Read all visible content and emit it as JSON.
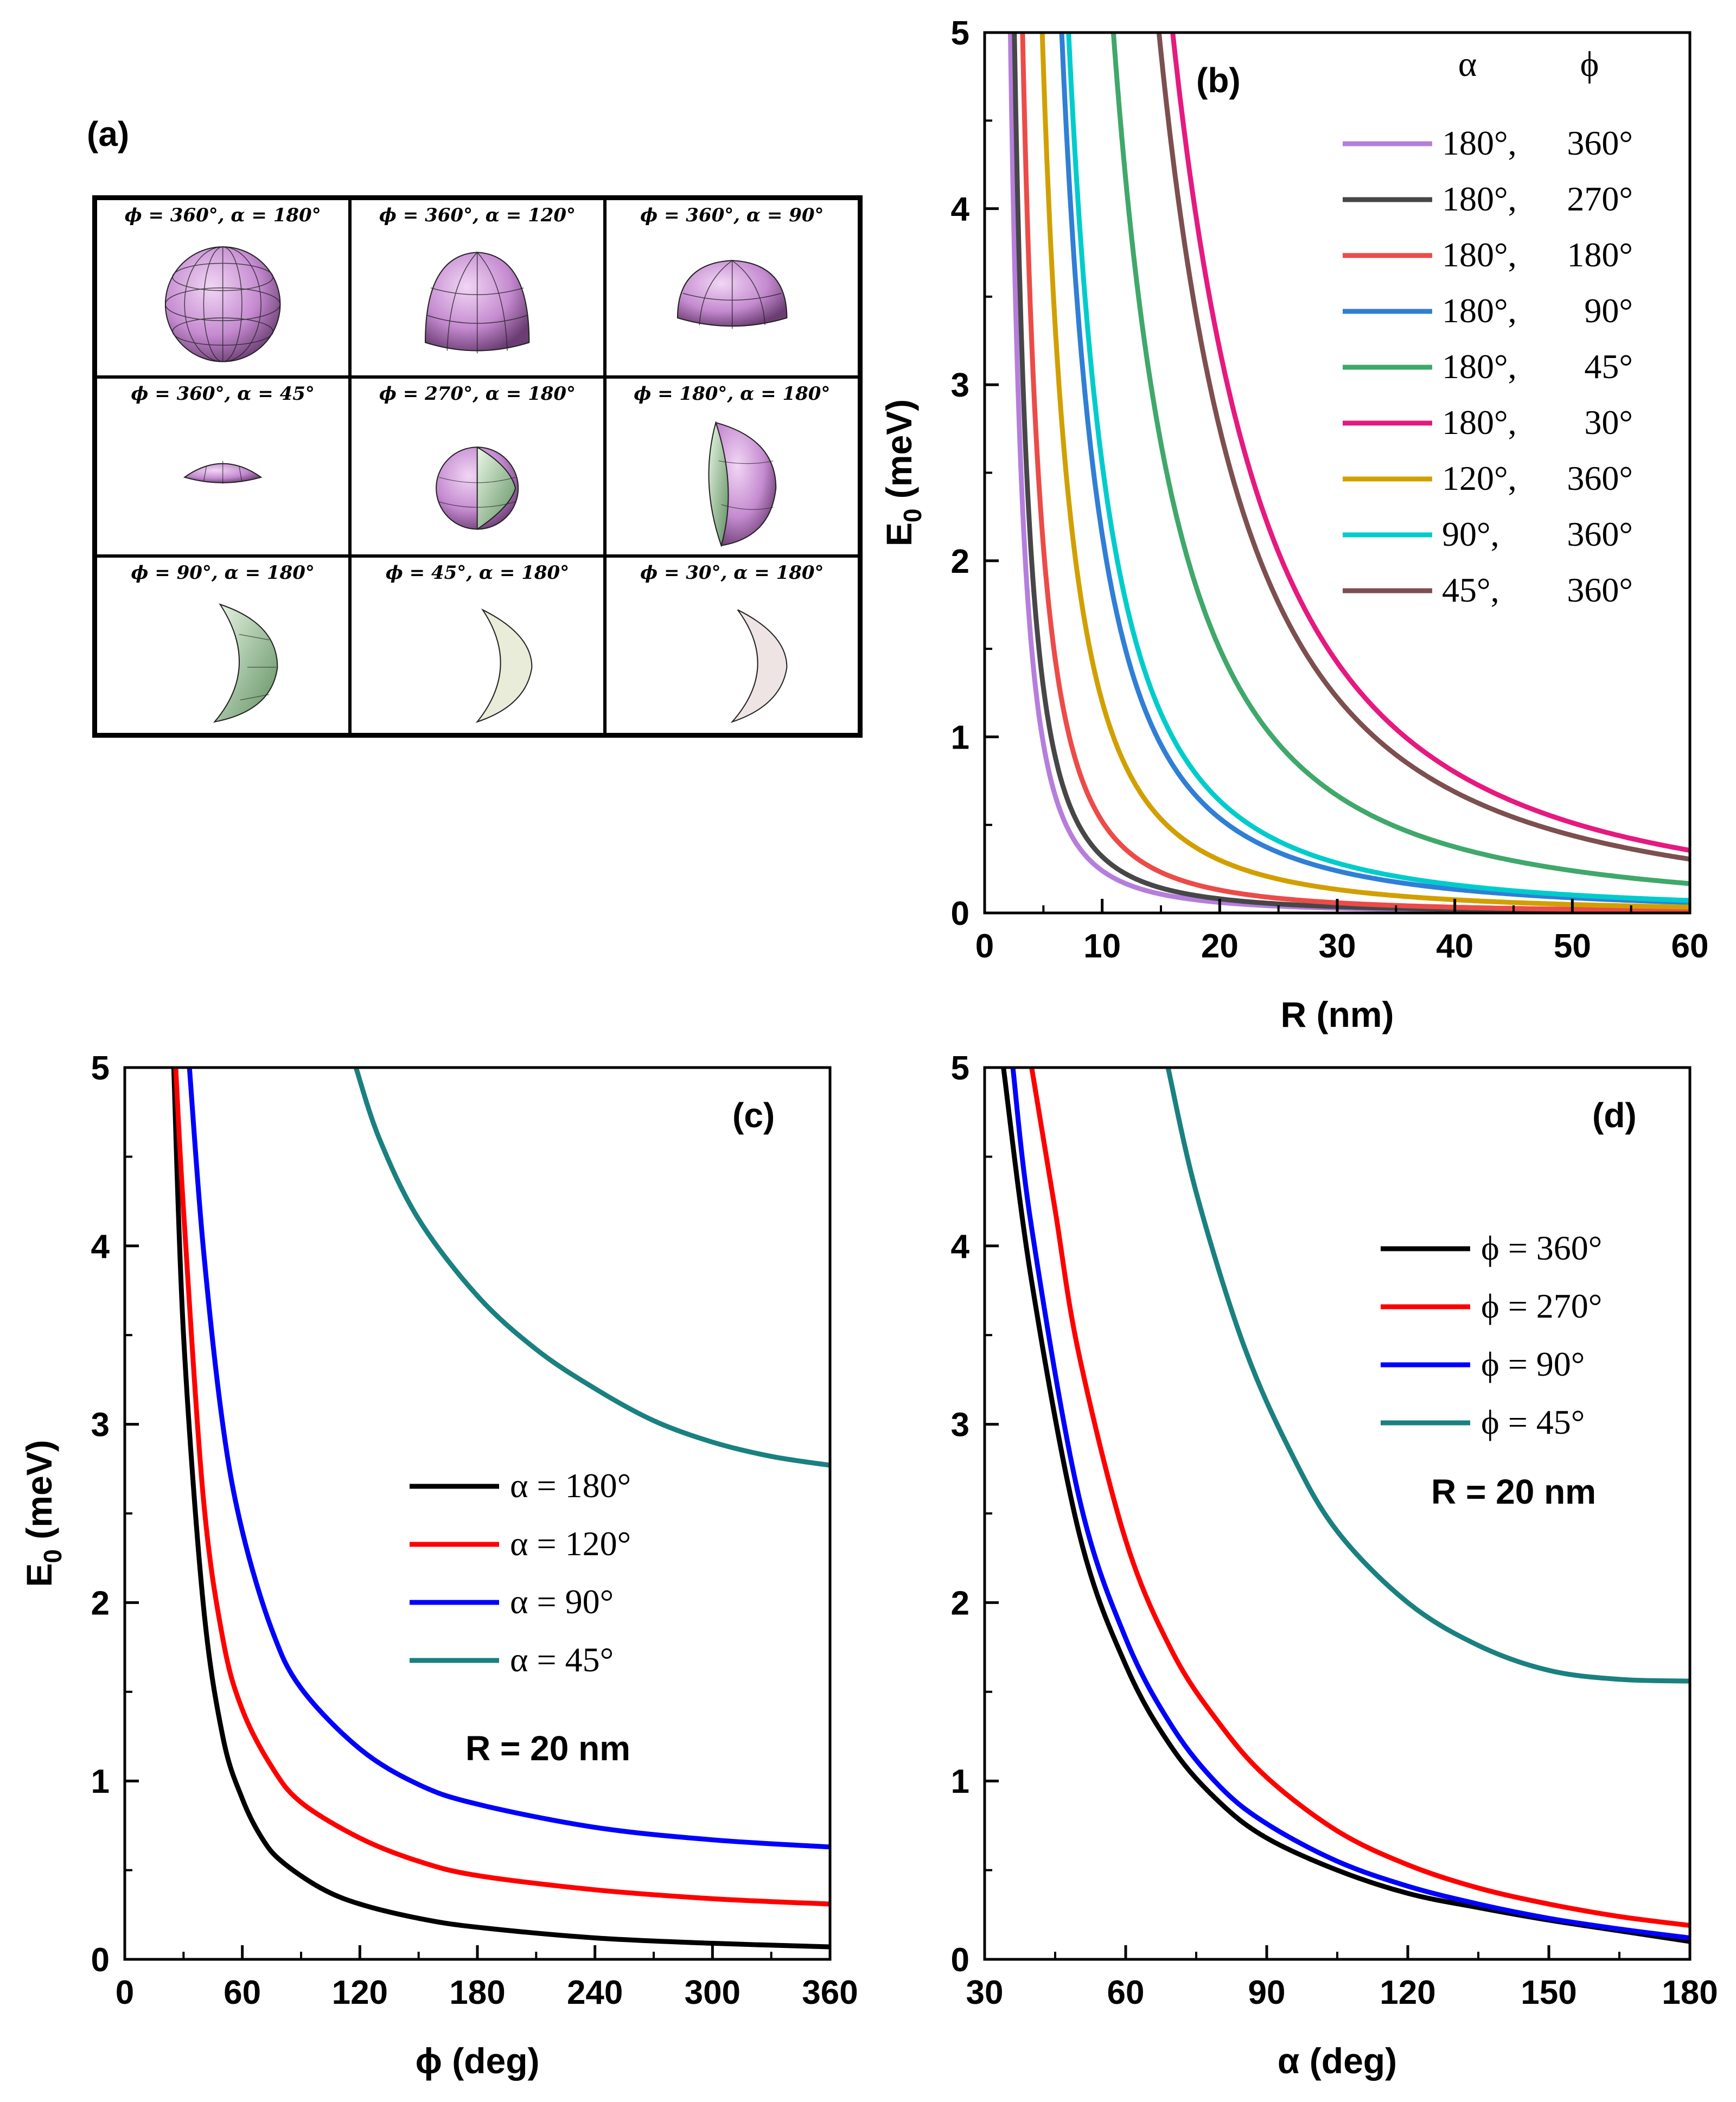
{
  "panel_a": {
    "letter": "(a)",
    "cells": [
      {
        "label": "ϕ = 360°, α = 180°",
        "shape": "full-sphere-icon"
      },
      {
        "label": "ϕ = 360°, α = 120°",
        "shape": "large-spherical-cap-icon"
      },
      {
        "label": "ϕ = 360°, α = 90°",
        "shape": "hemisphere-icon"
      },
      {
        "label": "ϕ = 360°, α = 45°",
        "shape": "flat-spherical-cap-icon"
      },
      {
        "label": "ϕ = 270°, α = 180°",
        "shape": "three-quarter-sphere-icon"
      },
      {
        "label": "ϕ = 180°, α = 180°",
        "shape": "half-sphere-wedge-icon"
      },
      {
        "label": "ϕ = 90°, α = 180°",
        "shape": "quarter-sphere-wedge-icon"
      },
      {
        "label": "ϕ = 45°, α = 180°",
        "shape": "thin-wedge-icon"
      },
      {
        "label": "ϕ = 30°, α = 180°",
        "shape": "thinnest-wedge-icon"
      }
    ]
  },
  "colors": {
    "axis": "#000000",
    "sphere_purple": "#c58bd0",
    "sphere_green": "#b6e0b0"
  },
  "chart_data": [
    {
      "id": "b",
      "panel_label": "(b)",
      "type": "line",
      "xlabel": "R (nm)",
      "ylabel_main": "E",
      "ylabel_sub": "0",
      "ylabel_rest": " (meV)",
      "xlim": [
        0,
        60
      ],
      "ylim": [
        0,
        5
      ],
      "xticks": [
        0,
        10,
        20,
        30,
        40,
        50,
        60
      ],
      "yticks": [
        0,
        1,
        2,
        3,
        4,
        5
      ],
      "legend_header": [
        "α",
        "ϕ"
      ],
      "legend_position": "top-right",
      "series": [
        {
          "name": "180°,  360°",
          "alpha": "180°,",
          "phi": "360°",
          "color": "#b57edc",
          "k": 24
        },
        {
          "name": "180°,  270°",
          "alpha": "180°,",
          "phi": "270°",
          "color": "#474747",
          "k": 32
        },
        {
          "name": "180°,  180°",
          "alpha": "180°,",
          "phi": "180°",
          "color": "#ec4b48",
          "k": 52
        },
        {
          "name": "180°,  90°",
          "alpha": "180°,",
          "phi": "90°",
          "color": "#2f7fd6",
          "k": 215
        },
        {
          "name": "180°,  45°",
          "alpha": "180°,",
          "phi": "45°",
          "color": "#3fa86a",
          "k": 600
        },
        {
          "name": "180°,  30°",
          "alpha": "180°,",
          "phi": "30°",
          "color": "#e6197f",
          "k": 1280
        },
        {
          "name": "120°,  360°",
          "alpha": "120°,",
          "phi": "360°",
          "color": "#d1a000",
          "k": 120
        },
        {
          "name": "90°,    360°",
          "alpha": "90°,",
          "phi": "360°",
          "color": "#00cccc",
          "k": 255
        },
        {
          "name": "45°,    360°",
          "alpha": "45°,",
          "phi": "360°",
          "color": "#7d4f4f",
          "k": 1100
        }
      ]
    },
    {
      "id": "c",
      "panel_label": "(c)",
      "type": "line",
      "xlabel": "ϕ (deg)",
      "ylabel_main": "E",
      "ylabel_sub": "0",
      "ylabel_rest": " (meV)",
      "xlim": [
        0,
        360
      ],
      "ylim": [
        0,
        5
      ],
      "xticks": [
        0,
        60,
        120,
        180,
        240,
        300,
        360
      ],
      "yticks": [
        0,
        1,
        2,
        3,
        4,
        5
      ],
      "legend_position": "center-right",
      "annotation": "R = 20 nm",
      "series": [
        {
          "name": "α  =  180°",
          "color": "#000000",
          "points": [
            [
              25,
              5
            ],
            [
              30,
              3.5
            ],
            [
              40,
              2.0
            ],
            [
              50,
              1.25
            ],
            [
              60,
              0.9
            ],
            [
              70,
              0.68
            ],
            [
              80,
              0.55
            ],
            [
              100,
              0.4
            ],
            [
              120,
              0.31
            ],
            [
              150,
              0.23
            ],
            [
              180,
              0.18
            ],
            [
              240,
              0.12
            ],
            [
              300,
              0.09
            ],
            [
              360,
              0.07
            ]
          ]
        },
        {
          "name": "α  =  120°",
          "color": "#ff0000",
          "points": [
            [
              26,
              5
            ],
            [
              30,
              4.2
            ],
            [
              40,
              2.6
            ],
            [
              50,
              1.8
            ],
            [
              60,
              1.4
            ],
            [
              75,
              1.08
            ],
            [
              90,
              0.88
            ],
            [
              120,
              0.68
            ],
            [
              150,
              0.55
            ],
            [
              180,
              0.47
            ],
            [
              240,
              0.39
            ],
            [
              300,
              0.34
            ],
            [
              360,
              0.31
            ]
          ]
        },
        {
          "name": "α  =  90°",
          "color": "#0000ff",
          "points": [
            [
              33,
              5
            ],
            [
              40,
              4.0
            ],
            [
              50,
              3.0
            ],
            [
              60,
              2.4
            ],
            [
              75,
              1.85
            ],
            [
              90,
              1.52
            ],
            [
              120,
              1.18
            ],
            [
              150,
              0.98
            ],
            [
              180,
              0.87
            ],
            [
              240,
              0.74
            ],
            [
              300,
              0.67
            ],
            [
              360,
              0.63
            ]
          ]
        },
        {
          "name": "α  =  45°",
          "color": "#1a8080",
          "points": [
            [
              118,
              5
            ],
            [
              130,
              4.6
            ],
            [
              150,
              4.15
            ],
            [
              180,
              3.72
            ],
            [
              210,
              3.42
            ],
            [
              240,
              3.2
            ],
            [
              270,
              3.02
            ],
            [
              300,
              2.9
            ],
            [
              330,
              2.82
            ],
            [
              360,
              2.77
            ]
          ]
        }
      ]
    },
    {
      "id": "d",
      "panel_label": "(d)",
      "type": "line",
      "xlabel": "α  (deg)",
      "ylabel_main": "",
      "ylabel_sub": "",
      "ylabel_rest": "",
      "xlim": [
        30,
        180
      ],
      "ylim": [
        0,
        5
      ],
      "xticks": [
        30,
        60,
        90,
        120,
        150,
        180
      ],
      "yticks": [
        0,
        1,
        2,
        3,
        4,
        5
      ],
      "legend_position": "top-right",
      "annotation": "R = 20 nm",
      "series": [
        {
          "name": "ϕ  =  360°",
          "color": "#000000",
          "points": [
            [
              34,
              5
            ],
            [
              40,
              3.8
            ],
            [
              50,
              2.4
            ],
            [
              60,
              1.65
            ],
            [
              70,
              1.18
            ],
            [
              80,
              0.88
            ],
            [
              90,
              0.68
            ],
            [
              105,
              0.5
            ],
            [
              120,
              0.37
            ],
            [
              135,
              0.29
            ],
            [
              150,
              0.22
            ],
            [
              165,
              0.16
            ],
            [
              180,
              0.1
            ]
          ]
        },
        {
          "name": "ϕ  =  270°",
          "color": "#ff0000",
          "points": [
            [
              40,
              5
            ],
            [
              45,
              4.2
            ],
            [
              50,
              3.4
            ],
            [
              60,
              2.35
            ],
            [
              70,
              1.72
            ],
            [
              80,
              1.32
            ],
            [
              90,
              1.02
            ],
            [
              105,
              0.72
            ],
            [
              120,
              0.53
            ],
            [
              135,
              0.4
            ],
            [
              150,
              0.31
            ],
            [
              165,
              0.24
            ],
            [
              180,
              0.19
            ]
          ]
        },
        {
          "name": "ϕ  =  90°",
          "color": "#0000ff",
          "points": [
            [
              36,
              5
            ],
            [
              40,
              4.1
            ],
            [
              50,
              2.6
            ],
            [
              60,
              1.8
            ],
            [
              70,
              1.3
            ],
            [
              80,
              0.97
            ],
            [
              90,
              0.76
            ],
            [
              105,
              0.55
            ],
            [
              120,
              0.41
            ],
            [
              135,
              0.31
            ],
            [
              150,
              0.23
            ],
            [
              165,
              0.17
            ],
            [
              180,
              0.12
            ]
          ]
        },
        {
          "name": "ϕ  =  45°",
          "color": "#1a8080",
          "points": [
            [
              69,
              5
            ],
            [
              75,
              4.3
            ],
            [
              85,
              3.45
            ],
            [
              95,
              2.85
            ],
            [
              105,
              2.4
            ],
            [
              120,
              2.0
            ],
            [
              135,
              1.76
            ],
            [
              150,
              1.62
            ],
            [
              165,
              1.57
            ],
            [
              180,
              1.56
            ]
          ]
        }
      ]
    }
  ]
}
